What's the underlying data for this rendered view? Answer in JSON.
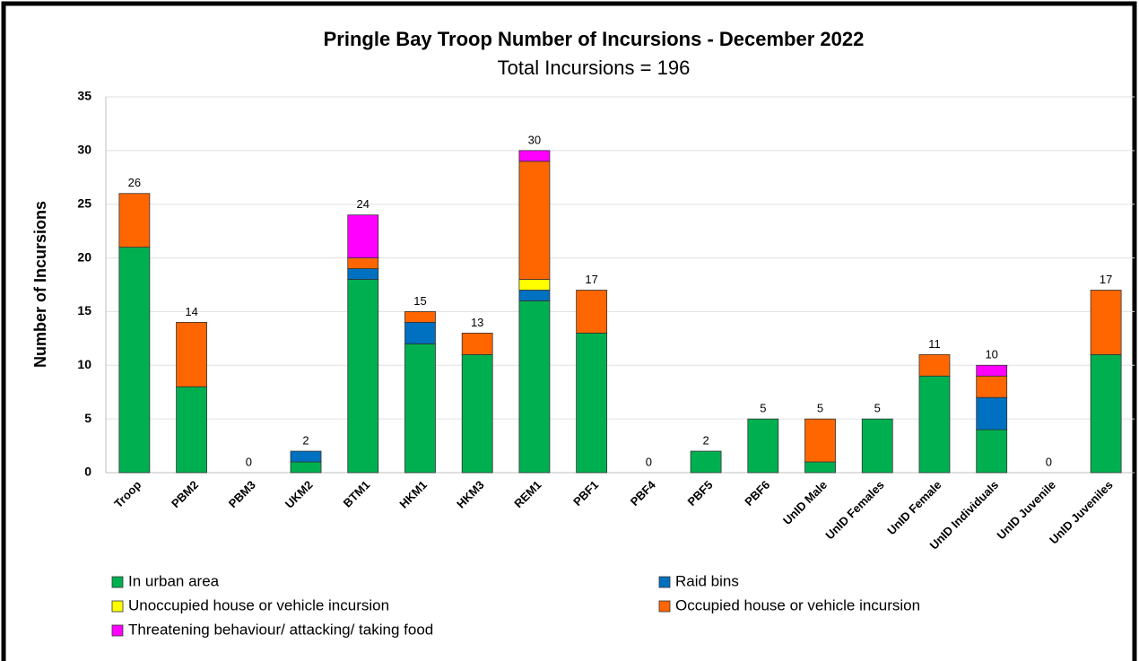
{
  "chart_data": {
    "type": "stacked_bar",
    "title": "Pringle Bay Troop Number of Incursions - December 2022",
    "subtitle": "Total Incursions =  196",
    "y_label": "Number of Incursions",
    "categories": [
      "Troop",
      "PBM2",
      "PBM3",
      "UKM2",
      "BTM1",
      "HKM1",
      "HKM3",
      "REM1",
      "PBF1",
      "PBF4",
      "PBF5",
      "PBF6",
      "UnID Male",
      "UnID Females",
      "UnID Female",
      "UnID Individuals",
      "UnID Juvenile",
      "UnID Juveniles"
    ],
    "series": [
      {
        "name": "In urban area",
        "color": "#00b050",
        "values": [
          21,
          8,
          0,
          1,
          18,
          12,
          11,
          16,
          13,
          0,
          2,
          5,
          1,
          5,
          9,
          4,
          0,
          11
        ]
      },
      {
        "name": "Raid bins",
        "color": "#0070c0",
        "values": [
          0,
          0,
          0,
          1,
          1,
          2,
          0,
          1,
          0,
          0,
          0,
          0,
          0,
          0,
          0,
          3,
          0,
          0
        ]
      },
      {
        "name": "Unoccupied house or vehicle incursion",
        "color": "#ffff00",
        "values": [
          0,
          0,
          0,
          0,
          0,
          0,
          0,
          1,
          0,
          0,
          0,
          0,
          0,
          0,
          0,
          0,
          0,
          0
        ]
      },
      {
        "name": "Occupied house or vehicle incursion",
        "color": "#ff6600",
        "values": [
          5,
          6,
          0,
          0,
          1,
          1,
          2,
          11,
          4,
          0,
          0,
          0,
          4,
          0,
          2,
          2,
          0,
          6
        ]
      },
      {
        "name": "Threatening behaviour/ attacking/ taking food",
        "color": "#ff00ff",
        "values": [
          0,
          0,
          0,
          0,
          4,
          0,
          0,
          1,
          0,
          0,
          0,
          0,
          0,
          0,
          0,
          1,
          0,
          0
        ]
      }
    ],
    "total_labels": [
      26,
      14,
      0,
      2,
      24,
      15,
      13,
      30,
      17,
      0,
      2,
      5,
      5,
      5,
      11,
      10,
      0,
      17
    ],
    "ylim": [
      0,
      35
    ],
    "yticks": [
      0,
      5,
      10,
      15,
      20,
      25,
      30,
      35
    ],
    "grid": true
  }
}
